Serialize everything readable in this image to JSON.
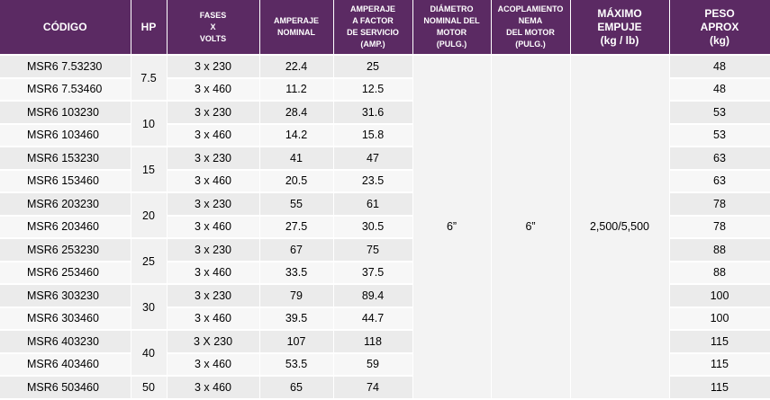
{
  "headers": {
    "codigo": [
      "CÓDIGO"
    ],
    "hp": [
      "HP"
    ],
    "fases": [
      "FASES",
      "X",
      "VOLTS"
    ],
    "amperaje": [
      "AMPERAJE",
      "NOMINAL"
    ],
    "amperaje_fs": [
      "AMPERAJE",
      "A FACTOR",
      "DE SERVICIO",
      "(AMP.)"
    ],
    "diametro": [
      "DIÁMETRO",
      "NOMINAL DEL",
      "MOTOR",
      "(PULG.)"
    ],
    "acoplamiento": [
      "ACOPLAMIENTO",
      "NEMA",
      "DEL MOTOR",
      "(PULG.)"
    ],
    "empuje": [
      "MÁXIMO",
      "EMPUJE",
      "(kg / lb)"
    ],
    "peso": [
      "PESO",
      "APROX",
      "(kg)"
    ]
  },
  "shared": {
    "diametro": "6”",
    "acoplamiento": "6”",
    "empuje": "2,500/5,500"
  },
  "hp_groups": [
    {
      "hp": "7.5",
      "rows": 2
    },
    {
      "hp": "10",
      "rows": 2
    },
    {
      "hp": "15",
      "rows": 2
    },
    {
      "hp": "20",
      "rows": 2
    },
    {
      "hp": "25",
      "rows": 2
    },
    {
      "hp": "30",
      "rows": 2
    },
    {
      "hp": "40",
      "rows": 2
    },
    {
      "hp": "50",
      "rows": 1
    }
  ],
  "rows": [
    {
      "codigo": "MSR6 7.53230",
      "fases": "3 x 230",
      "amperaje": "22.4",
      "amperaje_fs": "25",
      "peso": "48"
    },
    {
      "codigo": "MSR6 7.53460",
      "fases": "3 x 460",
      "amperaje": "11.2",
      "amperaje_fs": "12.5",
      "peso": "48"
    },
    {
      "codigo": "MSR6 103230",
      "fases": "3 x 230",
      "amperaje": "28.4",
      "amperaje_fs": "31.6",
      "peso": "53"
    },
    {
      "codigo": "MSR6 103460",
      "fases": "3 x 460",
      "amperaje": "14.2",
      "amperaje_fs": "15.8",
      "peso": "53"
    },
    {
      "codigo": "MSR6 153230",
      "fases": "3 x 230",
      "amperaje": "41",
      "amperaje_fs": "47",
      "peso": "63"
    },
    {
      "codigo": "MSR6 153460",
      "fases": "3 x 460",
      "amperaje": "20.5",
      "amperaje_fs": "23.5",
      "peso": "63"
    },
    {
      "codigo": "MSR6 203230",
      "fases": "3 x 230",
      "amperaje": "55",
      "amperaje_fs": "61",
      "peso": "78"
    },
    {
      "codigo": "MSR6 203460",
      "fases": "3 x 460",
      "amperaje": "27.5",
      "amperaje_fs": "30.5",
      "peso": "78"
    },
    {
      "codigo": "MSR6 253230",
      "fases": "3 x 230",
      "amperaje": "67",
      "amperaje_fs": "75",
      "peso": "88"
    },
    {
      "codigo": "MSR6 253460",
      "fases": "3 x 460",
      "amperaje": "33.5",
      "amperaje_fs": "37.5",
      "peso": "88"
    },
    {
      "codigo": "MSR6 303230",
      "fases": "3 x 230",
      "amperaje": "79",
      "amperaje_fs": "89.4",
      "peso": "100"
    },
    {
      "codigo": "MSR6 303460",
      "fases": "3 x 460",
      "amperaje": "39.5",
      "amperaje_fs": "44.7",
      "peso": "100"
    },
    {
      "codigo": "MSR6 403230",
      "fases": "3 X 230",
      "amperaje": "107",
      "amperaje_fs": "118",
      "peso": "115"
    },
    {
      "codigo": "MSR6 403460",
      "fases": "3 x 460",
      "amperaje": "53.5",
      "amperaje_fs": "59",
      "peso": "115"
    },
    {
      "codigo": "MSR6 503460",
      "fases": "3 x 460",
      "amperaje": "65",
      "amperaje_fs": "74",
      "peso": "115"
    }
  ]
}
